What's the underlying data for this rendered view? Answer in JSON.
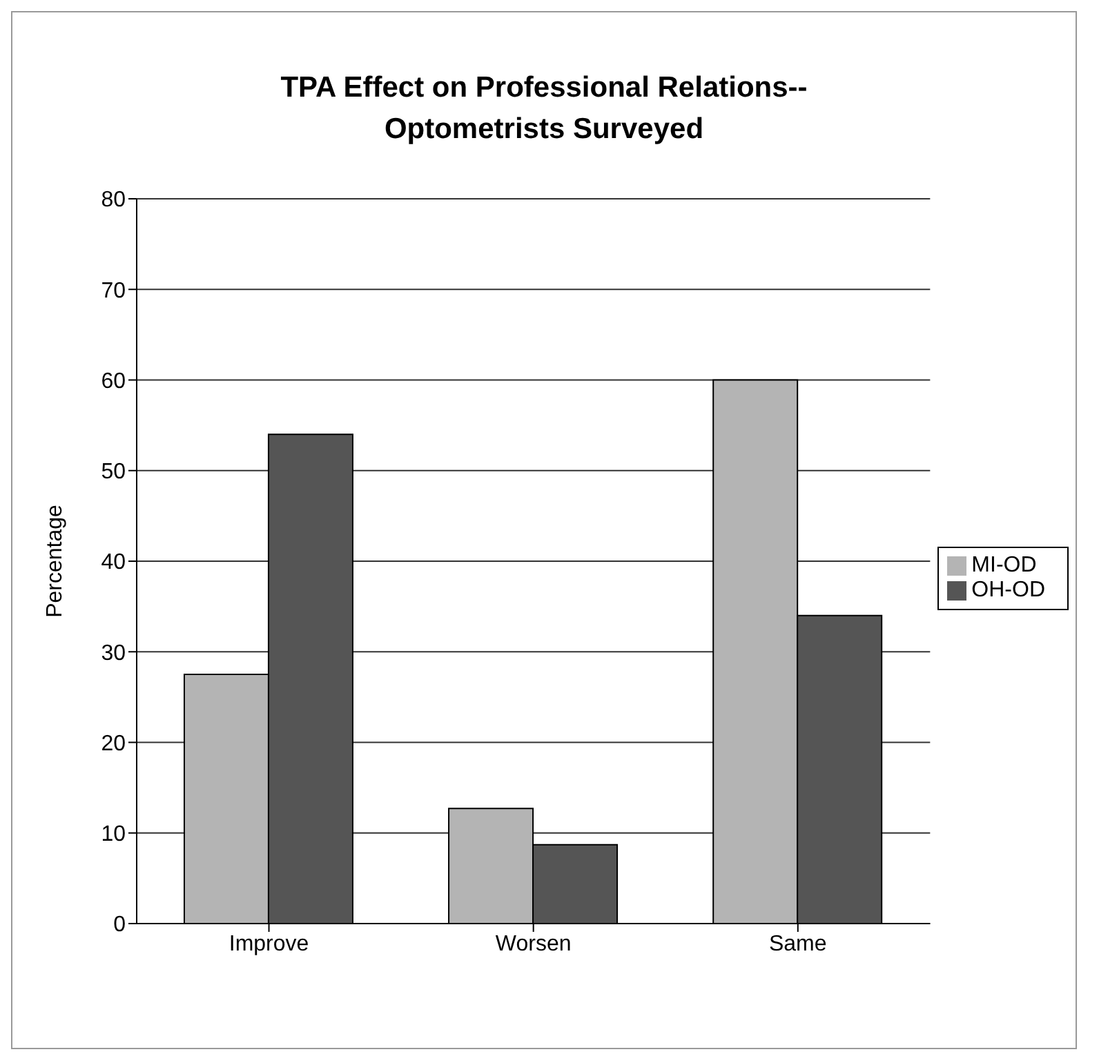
{
  "chart_data": {
    "type": "bar",
    "title": "TPA Effect on Professional Relations--\nOptometrists Surveyed",
    "ylabel": "Percentage",
    "categories": [
      "Improve",
      "Worsen",
      "Same"
    ],
    "series": [
      {
        "name": "MI-OD",
        "color": "#b4b4b4",
        "values": [
          27.5,
          12.7,
          60
        ]
      },
      {
        "name": "OH-OD",
        "color": "#555555",
        "values": [
          54,
          8.7,
          34
        ]
      }
    ],
    "ylim": [
      0,
      80
    ],
    "yticks": [
      0,
      10,
      20,
      30,
      40,
      50,
      60,
      70,
      80
    ],
    "grid": "y",
    "legend": "right"
  }
}
